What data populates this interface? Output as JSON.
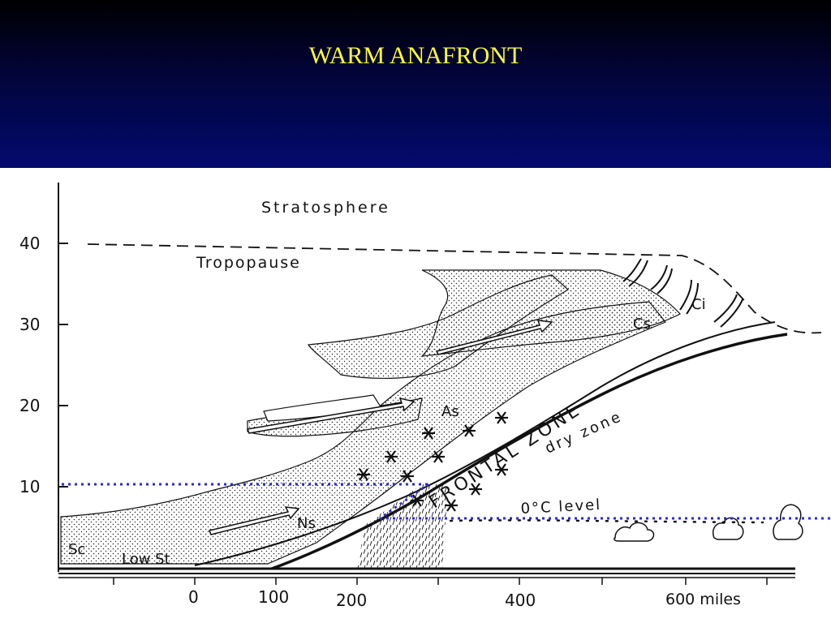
{
  "title": "WARM ANAFRONT",
  "diagram": {
    "y_ticks": [
      "40",
      "30",
      "20",
      "10"
    ],
    "x_ticks": [
      "0",
      "100",
      "200",
      "400",
      "600 miles"
    ],
    "labels": {
      "stratosphere": "Stratosphere",
      "tropopause": "Tropopause",
      "ci": "Ci",
      "cs": "Cs",
      "as": "As",
      "ns": "Ns",
      "sc": "Sc",
      "low_st": "Low St",
      "frontal_zone": "FRONTAL ZONE",
      "dry_zone": "dry zone",
      "freezing_level": "0°C level"
    },
    "colors": {
      "guide_dotted": "#2a2ad0",
      "ink": "#111111"
    }
  }
}
